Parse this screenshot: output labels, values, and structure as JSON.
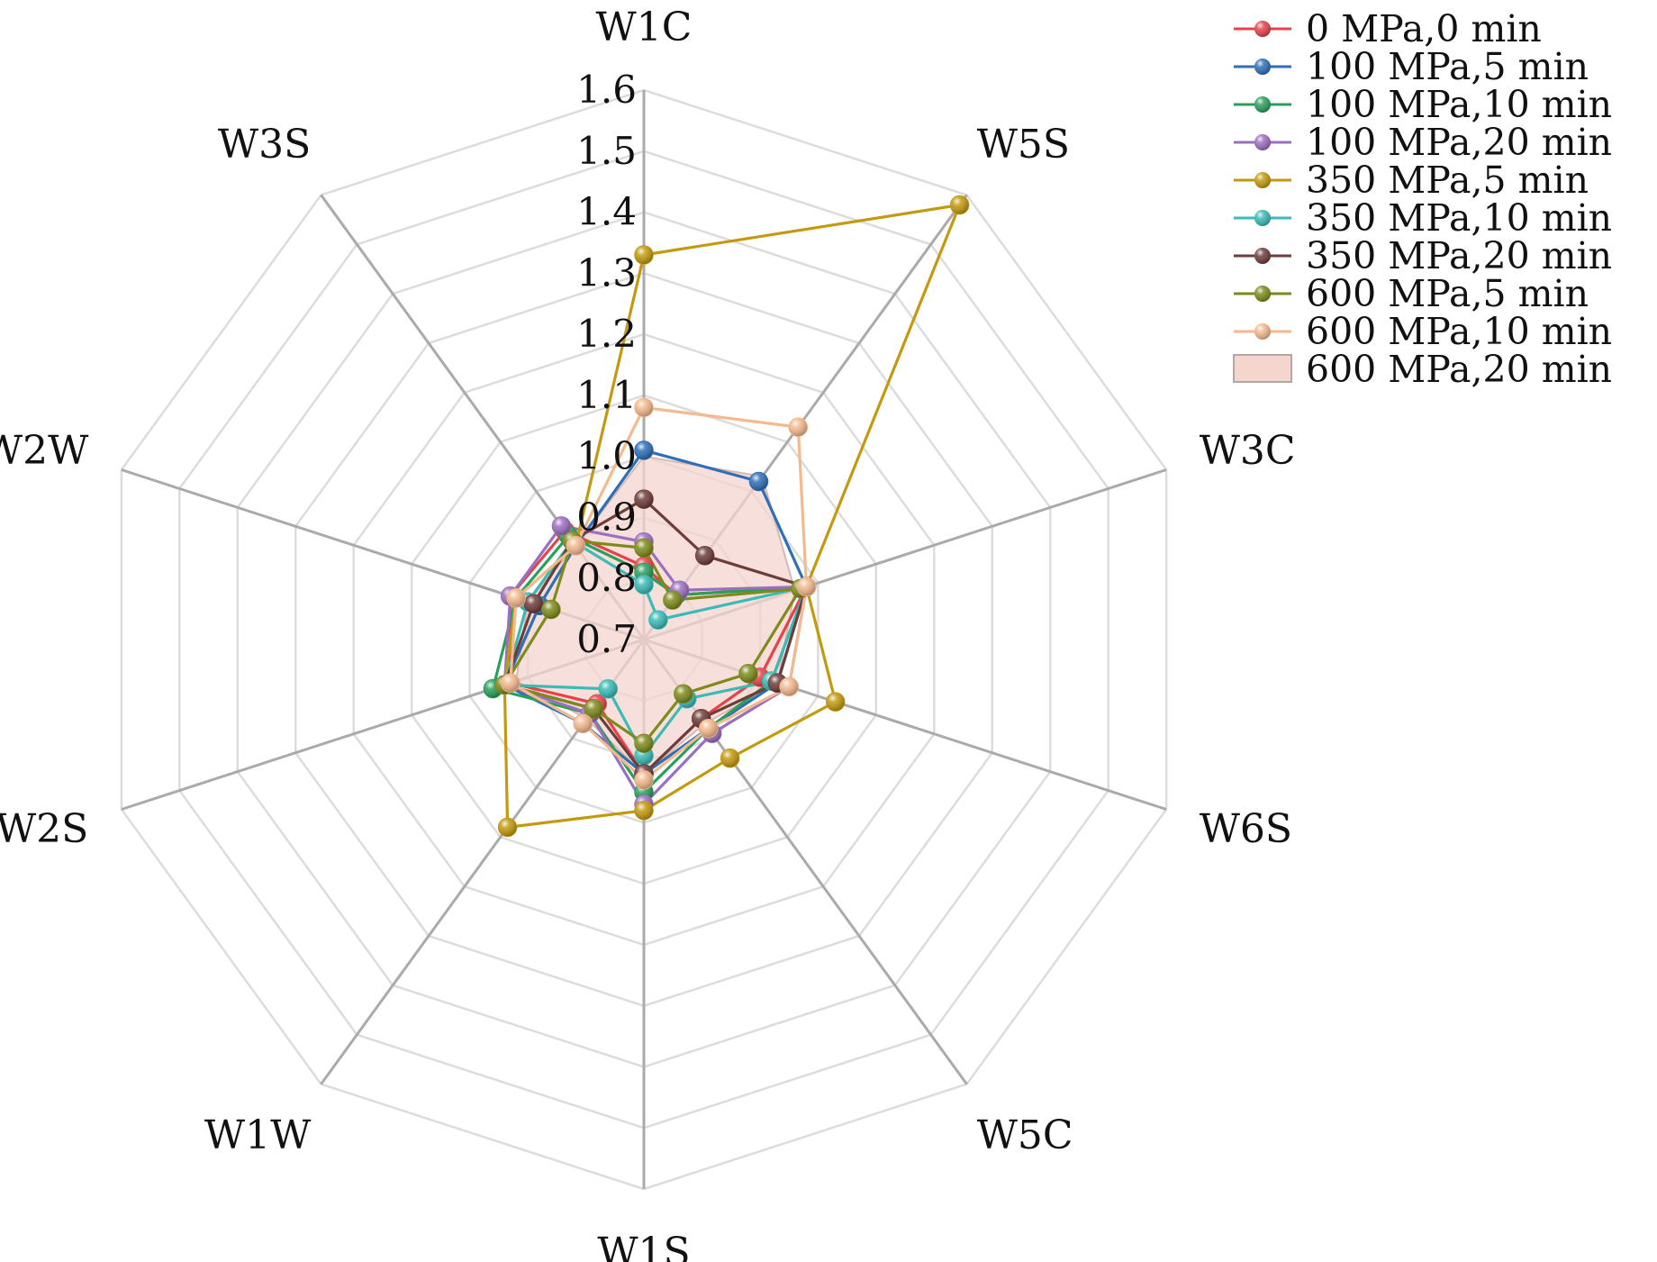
{
  "chart_data": {
    "type": "radar",
    "axes": [
      "W1C",
      "W5S",
      "W3C",
      "W6S",
      "W5C",
      "W1S",
      "W1W",
      "W2S",
      "W2W",
      "W3S"
    ],
    "range": [
      0.7,
      1.6
    ],
    "ticks": [
      "0.7",
      "0.8",
      "0.9",
      "1.0",
      "1.1",
      "1.2",
      "1.3",
      "1.4",
      "1.5",
      "1.6"
    ],
    "grid": true,
    "legend_position": "top-right",
    "series": [
      {
        "name": "0 MPa,0 min",
        "color": "#e8414b",
        "values": [
          0.82,
          0.79,
          0.98,
          0.9,
          0.86,
          0.92,
          0.83,
          0.93,
          0.93,
          0.92
        ]
      },
      {
        "name": "100 MPa,5 min",
        "color": "#2e6fb7",
        "values": [
          1.01,
          1.02,
          0.98,
          0.93,
          0.88,
          0.92,
          0.87,
          0.94,
          0.88,
          0.89
        ]
      },
      {
        "name": "100 MPa,10 min",
        "color": "#2a9f5c",
        "values": [
          0.81,
          0.79,
          0.98,
          0.92,
          0.88,
          0.95,
          0.85,
          0.96,
          0.92,
          0.91
        ]
      },
      {
        "name": "100 MPa,20 min",
        "color": "#9b6fc0",
        "values": [
          0.86,
          0.8,
          0.98,
          0.95,
          0.89,
          0.97,
          0.85,
          0.94,
          0.93,
          0.93
        ]
      },
      {
        "name": "350 MPa,5 min",
        "color": "#c39a0f",
        "values": [
          1.33,
          1.58,
          0.98,
          1.03,
          0.94,
          0.98,
          1.08,
          0.94,
          0.92,
          0.89
        ]
      },
      {
        "name": "350 MPa,10 min",
        "color": "#3bbab6",
        "values": [
          0.79,
          0.74,
          0.98,
          0.92,
          0.82,
          0.89,
          0.8,
          0.94,
          0.9,
          0.9
        ]
      },
      {
        "name": "350 MPa,20 min",
        "color": "#6d3d3a",
        "values": [
          0.93,
          0.87,
          0.98,
          0.93,
          0.86,
          0.92,
          0.84,
          0.94,
          0.89,
          0.9
        ]
      },
      {
        "name": "600 MPa,5 min",
        "color": "#7e8a1c",
        "values": [
          0.85,
          0.78,
          0.97,
          0.88,
          0.81,
          0.87,
          0.84,
          0.94,
          0.86,
          0.9
        ]
      },
      {
        "name": "600 MPa,10 min",
        "color": "#f4b98e",
        "values": [
          1.08,
          1.13,
          0.98,
          0.95,
          0.88,
          0.93,
          0.87,
          0.93,
          0.92,
          0.89
        ]
      },
      {
        "name": "600 MPa,20 min",
        "color": "#b37b73",
        "fill": "#f4d6cf",
        "area": true,
        "values": [
          1.0,
          1.03,
          0.96,
          0.93,
          0.87,
          0.92,
          0.86,
          0.92,
          0.9,
          0.89
        ]
      }
    ]
  }
}
